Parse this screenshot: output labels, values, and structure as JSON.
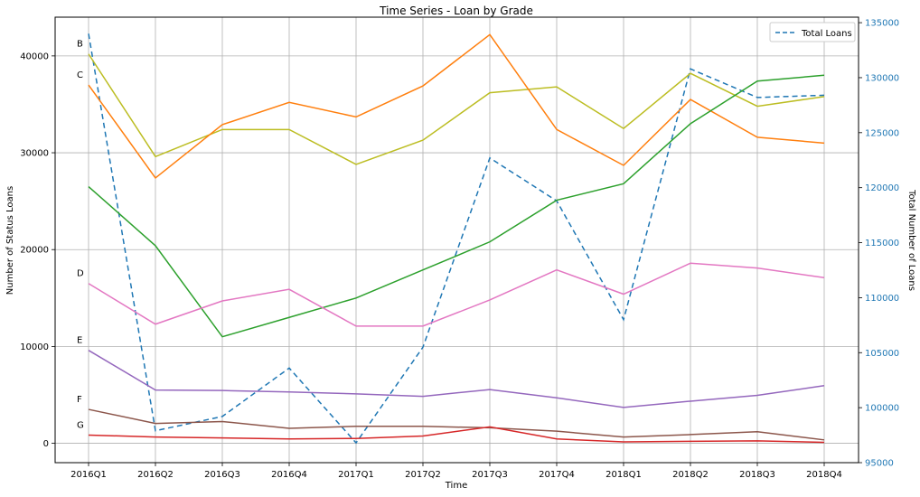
{
  "chart_data": {
    "type": "line",
    "title": "Time Series - Loan by Grade",
    "xlabel": "Time",
    "ylabel": "Number of Status Loans",
    "y2label": "Total Number of Loans",
    "categories": [
      "2016Q1",
      "2016Q2",
      "2016Q3",
      "2016Q4",
      "2017Q1",
      "2017Q2",
      "2017Q3",
      "2017Q4",
      "2018Q1",
      "2018Q2",
      "2018Q3",
      "2018Q4"
    ],
    "ylim": [
      -2000,
      44000
    ],
    "y2lim": [
      95000,
      135500
    ],
    "yticks": [
      0,
      10000,
      20000,
      30000,
      40000
    ],
    "y2ticks": [
      95000,
      100000,
      105000,
      110000,
      115000,
      120000,
      125000,
      130000,
      135000
    ],
    "grid": true,
    "legend_position": "top-right",
    "series": [
      {
        "annotation": "B",
        "color": "#bcbd22",
        "values": [
          40200,
          29600,
          32400,
          32400,
          28800,
          31300,
          36200,
          36800,
          32500,
          38200,
          34800,
          35800
        ]
      },
      {
        "annotation": "C",
        "color": "#ff7f0e",
        "values": [
          37000,
          27400,
          32900,
          35200,
          33700,
          36900,
          42200,
          32400,
          28700,
          35500,
          31600,
          31000
        ]
      },
      {
        "annotation": "",
        "color": "#2ca02c",
        "values": [
          26500,
          20400,
          11000,
          13000,
          15000,
          17900,
          20800,
          25100,
          26800,
          33000,
          37400,
          38000
        ]
      },
      {
        "annotation": "D",
        "color": "#e377c2",
        "values": [
          16500,
          12300,
          14700,
          15900,
          12100,
          12100,
          14800,
          17900,
          15400,
          18600,
          18100,
          17100
        ]
      },
      {
        "annotation": "E",
        "color": "#9467bd",
        "values": [
          9600,
          5500,
          5450,
          5300,
          5100,
          4850,
          5550,
          4700,
          3700,
          4350,
          4950,
          5950
        ]
      },
      {
        "annotation": "F",
        "color": "#8c564b",
        "values": [
          3500,
          2050,
          2250,
          1550,
          1750,
          1750,
          1600,
          1250,
          650,
          900,
          1200,
          350
        ]
      },
      {
        "annotation": "G",
        "color": "#d62728",
        "values": [
          850,
          650,
          550,
          450,
          500,
          750,
          1700,
          450,
          150,
          200,
          250,
          100
        ]
      }
    ],
    "secondary_series": {
      "name": "Total Loans",
      "color": "#1f77b4",
      "style": "dashed",
      "values": [
        134000,
        97900,
        99200,
        103600,
        96800,
        105500,
        122700,
        118800,
        108000,
        130800,
        128200,
        128400
      ]
    }
  }
}
